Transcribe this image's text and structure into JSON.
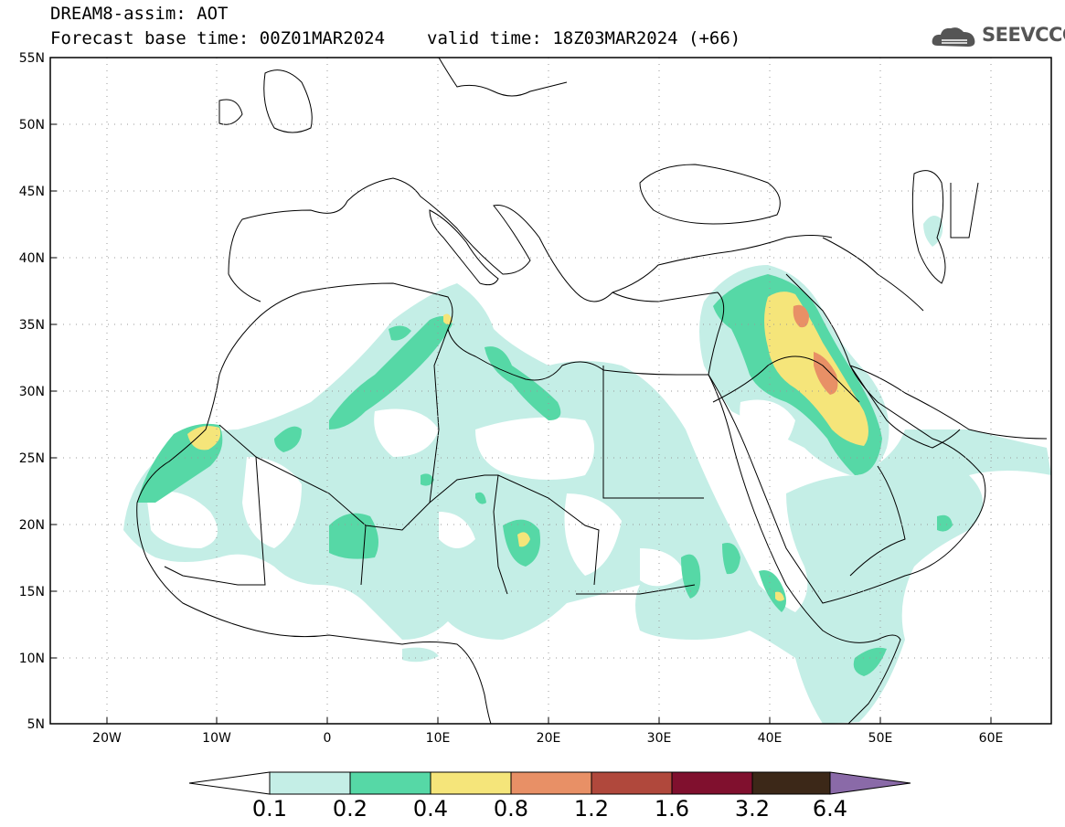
{
  "header": {
    "title": "DREAM8-assim: AOT",
    "base_time": "Forecast base time: 00Z01MAR2024",
    "valid_time": "valid time: 18Z03MAR2024 (+66)"
  },
  "logo": {
    "text": "SEEVCCC",
    "icon": "cloud-icon"
  },
  "map": {
    "lat_labels": [
      "55N",
      "50N",
      "45N",
      "40N",
      "35N",
      "30N",
      "25N",
      "20N",
      "15N",
      "10N",
      "5N"
    ],
    "lon_labels": [
      "20W",
      "10W",
      "0",
      "10E",
      "20E",
      "30E",
      "40E",
      "50E",
      "60E"
    ],
    "grid": "dotted"
  },
  "colorbar": {
    "labels": [
      "0.1",
      "0.2",
      "0.4",
      "0.8",
      "1.2",
      "1.6",
      "3.2",
      "6.4"
    ],
    "colors": [
      "#ffffff",
      "#c4eee6",
      "#56d8a6",
      "#f5e57a",
      "#e89066",
      "#b0483c",
      "#80102e",
      "#3c2818",
      "#8a6aa8"
    ]
  },
  "colors": {
    "aot_0_1": "#c4eee6",
    "aot_0_2": "#56d8a6",
    "aot_0_4": "#f5e57a",
    "aot_0_8": "#e89066",
    "aot_1_2": "#b0483c"
  }
}
